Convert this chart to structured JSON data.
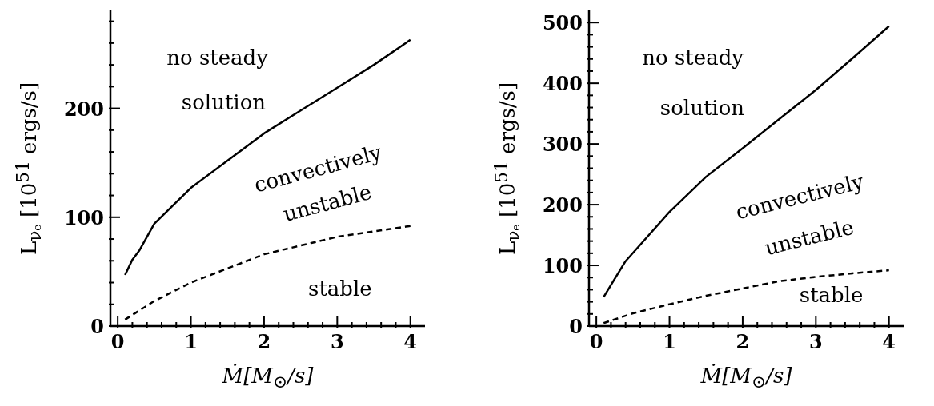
{
  "chart_data": [
    {
      "type": "line",
      "xlabel": "Ṁ[M$_{⊙}$/s]",
      "ylabel": "L$_{νₑ}$ [10$^{51}$ ergs/s]",
      "xlim": [
        -0.1,
        4.2
      ],
      "ylim": [
        0,
        290
      ],
      "xticks": [
        0,
        {
          "value": 0.2,
          "label": null
        },
        {
          "value": 0.4,
          "label": null
        },
        {
          "value": 0.6,
          "label": null
        },
        {
          "value": 0.8,
          "label": null
        },
        1,
        {
          "value": 1.2,
          "label": null
        },
        {
          "value": 1.4,
          "label": null
        },
        {
          "value": 1.6,
          "label": null
        },
        {
          "value": 1.8,
          "label": null
        },
        2,
        {
          "value": 2.2,
          "label": null
        },
        {
          "value": 2.4,
          "label": null
        },
        {
          "value": 2.6,
          "label": null
        },
        {
          "value": 2.8,
          "label": null
        },
        3,
        {
          "value": 3.2,
          "label": null
        },
        {
          "value": 3.4,
          "label": null
        },
        {
          "value": 3.6,
          "label": null
        },
        {
          "value": 3.8,
          "label": null
        },
        4
      ],
      "yticks": [
        0,
        {
          "value": 20,
          "label": null
        },
        {
          "value": 40,
          "label": null
        },
        {
          "value": 60,
          "label": null
        },
        {
          "value": 80,
          "label": null
        },
        100,
        {
          "value": 120,
          "label": null
        },
        {
          "value": 140,
          "label": null
        },
        {
          "value": 160,
          "label": null
        },
        {
          "value": 180,
          "label": null
        },
        200,
        {
          "value": 220,
          "label": null
        },
        {
          "value": 240,
          "label": null
        },
        {
          "value": 260,
          "label": null
        },
        {
          "value": 280,
          "label": null
        }
      ],
      "annotations": [
        "no steady",
        "solution",
        "convectively",
        "unstable",
        "stable"
      ],
      "series": [
        {
          "color": "#000000",
          "line_style": "solid",
          "x": [
            0.1,
            0.2,
            0.3,
            0.5,
            1,
            1.5,
            2,
            2.5,
            3,
            3.5,
            4
          ],
          "values": [
            47,
            61,
            70,
            94,
            127,
            152,
            177,
            198,
            219,
            240,
            263
          ]
        },
        {
          "color": "#000000",
          "line_style": "dashed",
          "x": [
            0.1,
            0.5,
            1,
            1.5,
            2,
            2.5,
            3,
            3.5,
            4
          ],
          "values": [
            6,
            23,
            40,
            53,
            66,
            74,
            82,
            87,
            92
          ]
        }
      ]
    },
    {
      "type": "line",
      "xlabel": "Ṁ[M$_{⊙}$/s]",
      "ylabel": "L$_{νₑ}$ [10$^{51}$ ergs/s]",
      "xlim": [
        -0.1,
        4.2
      ],
      "ylim": [
        0,
        520
      ],
      "xticks": [
        0,
        {
          "value": 0.2,
          "label": null
        },
        {
          "value": 0.4,
          "label": null
        },
        {
          "value": 0.6,
          "label": null
        },
        {
          "value": 0.8,
          "label": null
        },
        1,
        {
          "value": 1.2,
          "label": null
        },
        {
          "value": 1.4,
          "label": null
        },
        {
          "value": 1.6,
          "label": null
        },
        {
          "value": 1.8,
          "label": null
        },
        2,
        {
          "value": 2.2,
          "label": null
        },
        {
          "value": 2.4,
          "label": null
        },
        {
          "value": 2.6,
          "label": null
        },
        {
          "value": 2.8,
          "label": null
        },
        3,
        {
          "value": 3.2,
          "label": null
        },
        {
          "value": 3.4,
          "label": null
        },
        {
          "value": 3.6,
          "label": null
        },
        {
          "value": 3.8,
          "label": null
        },
        4
      ],
      "yticks": [
        0,
        {
          "value": 20,
          "label": null
        },
        {
          "value": 40,
          "label": null
        },
        {
          "value": 60,
          "label": null
        },
        {
          "value": 80,
          "label": null
        },
        100,
        {
          "value": 120,
          "label": null
        },
        {
          "value": 140,
          "label": null
        },
        {
          "value": 160,
          "label": null
        },
        {
          "value": 180,
          "label": null
        },
        200,
        {
          "value": 220,
          "label": null
        },
        {
          "value": 240,
          "label": null
        },
        {
          "value": 260,
          "label": null
        },
        {
          "value": 280,
          "label": null
        },
        300,
        {
          "value": 320,
          "label": null
        },
        {
          "value": 340,
          "label": null
        },
        {
          "value": 360,
          "label": null
        },
        {
          "value": 380,
          "label": null
        },
        400,
        {
          "value": 420,
          "label": null
        },
        {
          "value": 440,
          "label": null
        },
        {
          "value": 460,
          "label": null
        },
        {
          "value": 480,
          "label": null
        },
        500
      ],
      "annotations": [
        "no steady",
        "solution",
        "convectively",
        "unstable",
        "stable"
      ],
      "series": [
        {
          "color": "#000000",
          "line_style": "solid",
          "x": [
            0.1,
            0.4,
            0.6,
            1,
            1.5,
            2,
            2.5,
            3,
            3.5,
            4
          ],
          "values": [
            48,
            107,
            134,
            188,
            246,
            293,
            341,
            389,
            441,
            494
          ]
        },
        {
          "color": "#000000",
          "line_style": "dashed",
          "x": [
            0.1,
            0.5,
            1,
            1.5,
            2,
            2.5,
            3,
            3.5,
            4
          ],
          "values": [
            5,
            21,
            36,
            50,
            62,
            74,
            81,
            87,
            92
          ]
        }
      ]
    }
  ]
}
